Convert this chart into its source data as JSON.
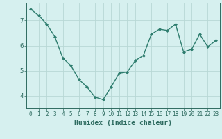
{
  "x": [
    0,
    1,
    2,
    3,
    4,
    5,
    6,
    7,
    8,
    9,
    10,
    11,
    12,
    13,
    14,
    15,
    16,
    17,
    18,
    19,
    20,
    21,
    22,
    23
  ],
  "y": [
    7.45,
    7.2,
    6.85,
    6.35,
    5.5,
    5.2,
    4.65,
    4.35,
    3.95,
    3.85,
    4.35,
    4.9,
    4.95,
    5.4,
    5.6,
    6.45,
    6.65,
    6.6,
    6.85,
    5.75,
    5.85,
    6.45,
    5.95,
    6.2
  ],
  "line_color": "#2e7d6e",
  "marker": "D",
  "marker_size": 2.0,
  "background_color": "#d6f0ef",
  "grid_color": "#b8d8d5",
  "tick_color": "#2e6b60",
  "xlabel": "Humidex (Indice chaleur)",
  "xlabel_fontsize": 7,
  "yticks": [
    4,
    5,
    6,
    7
  ],
  "xticks": [
    0,
    1,
    2,
    3,
    4,
    5,
    6,
    7,
    8,
    9,
    10,
    11,
    12,
    13,
    14,
    15,
    16,
    17,
    18,
    19,
    20,
    21,
    22,
    23
  ],
  "ylim": [
    3.5,
    7.7
  ],
  "xlim": [
    -0.5,
    23.5
  ],
  "line_width": 1.0,
  "tick_fontsize": 5.5,
  "ytick_fontsize": 6.5
}
